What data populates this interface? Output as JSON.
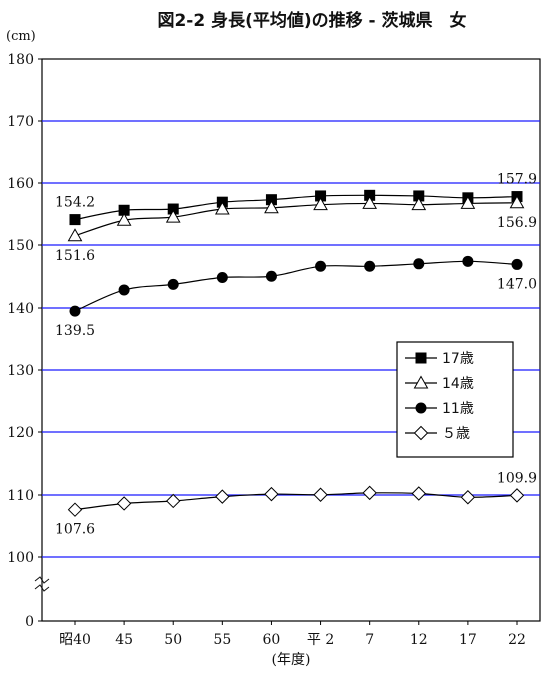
{
  "chart_data": {
    "type": "line",
    "title": "図2-2 身長(平均値)の推移 - 茨城県　女",
    "ylabel": "(cm)",
    "xlabel": "(年度)",
    "categories": [
      "昭40",
      "45",
      "50",
      "55",
      "60",
      "平 2",
      "7",
      "12",
      "17",
      "22"
    ],
    "y_ticks": [
      "180",
      "170",
      "160",
      "150",
      "140",
      "130",
      "120",
      "110",
      "100",
      "0"
    ],
    "axis_break": true,
    "ylim": [
      100,
      180
    ],
    "grid": true,
    "legend_position": "right",
    "series": [
      {
        "name": "17歳",
        "marker": "square",
        "values": [
          154.2,
          155.7,
          155.9,
          157.0,
          157.4,
          158.0,
          158.1,
          158.0,
          157.7,
          157.9
        ]
      },
      {
        "name": "14歳",
        "marker": "triangle",
        "values": [
          151.6,
          154.1,
          154.6,
          155.9,
          156.1,
          156.6,
          156.8,
          156.6,
          156.8,
          156.9
        ]
      },
      {
        "name": "11歳",
        "marker": "circle",
        "values": [
          139.5,
          142.9,
          143.8,
          144.9,
          145.1,
          146.7,
          146.7,
          147.1,
          147.5,
          147.0
        ]
      },
      {
        "name": "５歳",
        "marker": "diamond",
        "values": [
          107.6,
          108.6,
          109.0,
          109.7,
          110.1,
          110.0,
          110.3,
          110.2,
          109.6,
          109.9
        ]
      }
    ],
    "data_labels": [
      {
        "text": "154.2",
        "series": 0,
        "index": 0,
        "pos": "above"
      },
      {
        "text": "151.6",
        "series": 1,
        "index": 0,
        "pos": "below"
      },
      {
        "text": "139.5",
        "series": 2,
        "index": 0,
        "pos": "below"
      },
      {
        "text": "107.6",
        "series": 3,
        "index": 0,
        "pos": "below"
      },
      {
        "text": "157.9",
        "series": 0,
        "index": 9,
        "pos": "above"
      },
      {
        "text": "156.9",
        "series": 1,
        "index": 9,
        "pos": "below"
      },
      {
        "text": "147.0",
        "series": 2,
        "index": 9,
        "pos": "below"
      },
      {
        "text": "109.9",
        "series": 3,
        "index": 9,
        "pos": "above"
      }
    ],
    "colors": {
      "grid": "#1a1aff",
      "series": "#000000"
    }
  }
}
